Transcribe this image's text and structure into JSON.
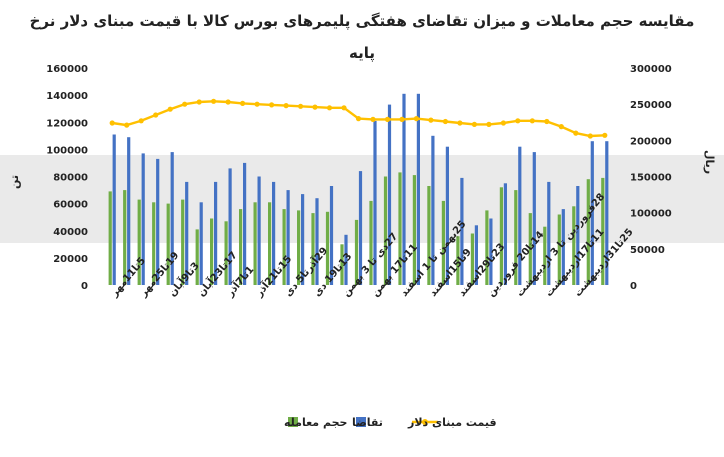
{
  "chart_data": {
    "type": "bar",
    "title_line1": "مقایسه حجم معاملات و میزان تقاضای هفتگی پلیمرهای بورس کالا با قیمت مبنای دلار نرخ",
    "title_line2": "پایه",
    "ylabel_left": "تن",
    "ylabel_right": "ریال",
    "ylim_left": [
      0,
      160000
    ],
    "ylim_right": [
      0,
      300000
    ],
    "yticks_left": [
      "0",
      "20000",
      "40000",
      "60000",
      "80000",
      "100000",
      "120000",
      "140000",
      "160000"
    ],
    "yticks_right": [
      "0",
      "50000",
      "100000",
      "150000",
      "200000",
      "250000",
      "300000"
    ],
    "categories_visible": [
      "5تا11مهر",
      "19تا25مهر",
      "3تا9آبان",
      "17تا23آبان",
      "1تا7آذر",
      "15تا21آذر",
      "29آذرتا5 دی",
      "13تا19 دی",
      "27دی تا 3 بهمن",
      "11تا17 بهمن",
      "25بهمن تا 1 اسفند",
      "9تا15اسفند",
      "23تا29اسفند",
      "14تا20 فروردین",
      "28فروردین تا 3 اردیبهشت",
      "11تا17اردیبهشت",
      "25تا31اردیبهشت"
    ],
    "legend": [
      {
        "name": "حجم معامله",
        "color": "#70ad47"
      },
      {
        "name": "تقاضا",
        "color": "#4472c4"
      },
      {
        "name": "قیمت مبنای دلار",
        "color": "#ffc000"
      }
    ],
    "series": [
      {
        "name": "حجم معامله",
        "color": "#70ad47",
        "axis": "left",
        "values": [
          69000,
          70000,
          63000,
          61000,
          60000,
          63000,
          41000,
          49000,
          47000,
          56000,
          61000,
          61000,
          56000,
          55000,
          53000,
          54000,
          30000,
          48000,
          62000,
          80000,
          83000,
          81000,
          73000,
          62000,
          36000,
          38000,
          55000,
          72000,
          70000,
          53000,
          43000,
          52000,
          58000,
          78000,
          79000
        ]
      },
      {
        "name": "تقاضا",
        "color": "#4472c4",
        "axis": "left",
        "values": [
          111000,
          109000,
          97000,
          93000,
          98000,
          76000,
          61000,
          76000,
          86000,
          90000,
          80000,
          76000,
          70000,
          67000,
          64000,
          73000,
          37000,
          84000,
          121000,
          133000,
          141000,
          141000,
          110000,
          102000,
          79000,
          44000,
          49000,
          75000,
          102000,
          98000,
          76000,
          56000,
          73000,
          106000,
          106000
        ]
      },
      {
        "name": "قیمت مبنای دلار",
        "color": "#ffc000",
        "axis": "right",
        "values": [
          224000,
          221000,
          227000,
          235000,
          243000,
          250000,
          253000,
          254000,
          253000,
          251000,
          250000,
          249000,
          248000,
          247000,
          246000,
          245000,
          245000,
          230000,
          229000,
          229000,
          229000,
          230000,
          228000,
          226000,
          224000,
          222000,
          222000,
          224000,
          227000,
          227000,
          226000,
          219000,
          210000,
          206000,
          207000
        ]
      }
    ]
  }
}
